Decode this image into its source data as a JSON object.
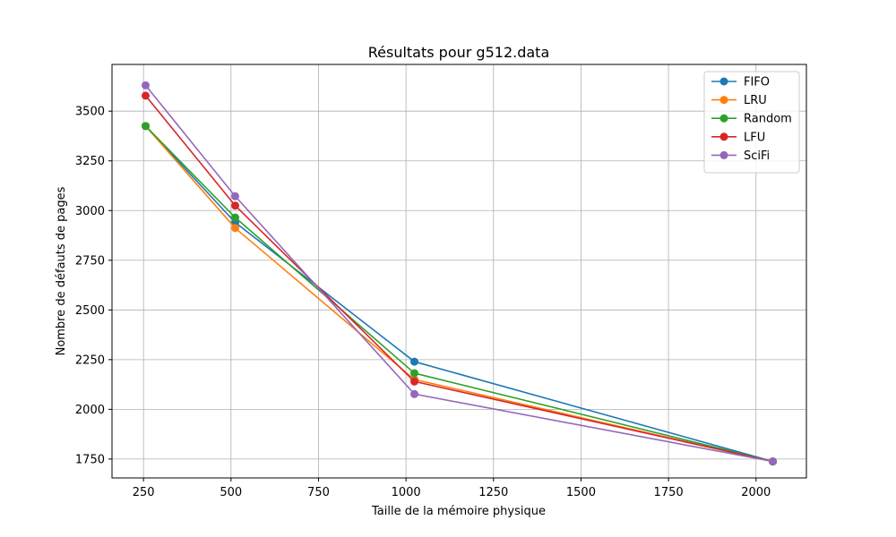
{
  "chart_data": {
    "type": "line",
    "title": "Résultats pour g512.data",
    "xlabel": "Taille de la mémoire physique",
    "ylabel": "Nombre de défauts de pages",
    "x": [
      256,
      512,
      1024,
      2048
    ],
    "xlim": [
      160,
      2144
    ],
    "ylim": [
      1655,
      3735
    ],
    "xticks": [
      250,
      500,
      750,
      1000,
      1250,
      1500,
      1750,
      2000
    ],
    "yticks": [
      1750,
      2000,
      2250,
      2500,
      2750,
      3000,
      3250,
      3500
    ],
    "grid": true,
    "legend_position": "top-right",
    "series": [
      {
        "name": "FIFO",
        "color": "#1f77b4",
        "values": [
          3425,
          2940,
          2240,
          1738
        ]
      },
      {
        "name": "LRU",
        "color": "#ff7f0e",
        "values": [
          3425,
          2912,
          2150,
          1738
        ]
      },
      {
        "name": "Random",
        "color": "#2ca02c",
        "values": [
          3425,
          2965,
          2182,
          1738
        ]
      },
      {
        "name": "LFU",
        "color": "#d62728",
        "values": [
          3578,
          3025,
          2140,
          1738
        ]
      },
      {
        "name": "SciFi",
        "color": "#9467bd",
        "values": [
          3630,
          3072,
          2077,
          1738
        ]
      }
    ]
  }
}
